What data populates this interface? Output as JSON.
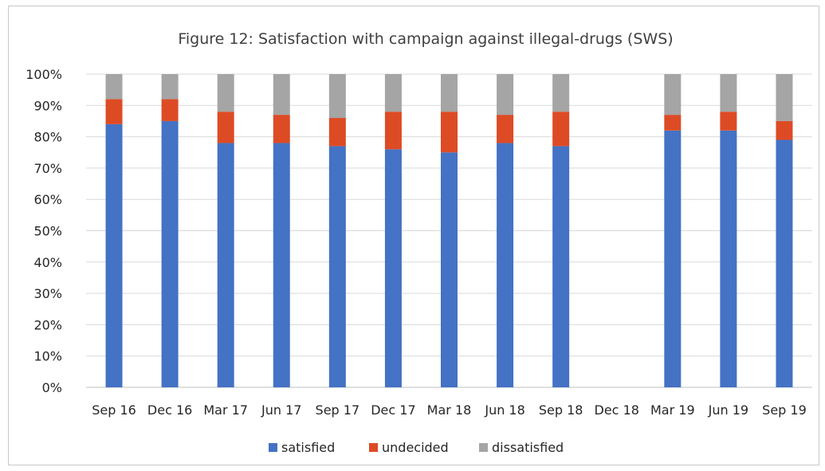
{
  "chart_data": {
    "type": "bar",
    "stacked": true,
    "title": "Figure 12: Satisfaction with campaign against illegal-drugs (SWS)",
    "xlabel": "",
    "ylabel": "",
    "ylim": [
      0,
      100
    ],
    "yticks": [
      "0%",
      "10%",
      "20%",
      "30%",
      "40%",
      "50%",
      "60%",
      "70%",
      "80%",
      "90%",
      "100%"
    ],
    "grid": "horizontal",
    "legend_position": "bottom",
    "categories": [
      "Sep 16",
      "Dec 16",
      "Mar 17",
      "Jun 17",
      "Sep 17",
      "Dec 17",
      "Mar 18",
      "Jun 18",
      "Sep 18",
      "Dec 18",
      "Mar 19",
      "Jun 19",
      "Sep 19"
    ],
    "series": [
      {
        "name": "satisfied",
        "color": "#4472c4",
        "values": [
          84,
          85,
          78,
          78,
          77,
          76,
          75,
          78,
          77,
          null,
          82,
          82,
          79
        ]
      },
      {
        "name": "undecided",
        "color": "#dd4b25",
        "values": [
          8,
          7,
          10,
          9,
          9,
          12,
          13,
          9,
          11,
          null,
          5,
          6,
          6
        ]
      },
      {
        "name": "dissatisfied",
        "color": "#a5a5a5",
        "values": [
          8,
          8,
          12,
          13,
          14,
          12,
          12,
          13,
          12,
          null,
          13,
          12,
          15
        ]
      }
    ]
  }
}
